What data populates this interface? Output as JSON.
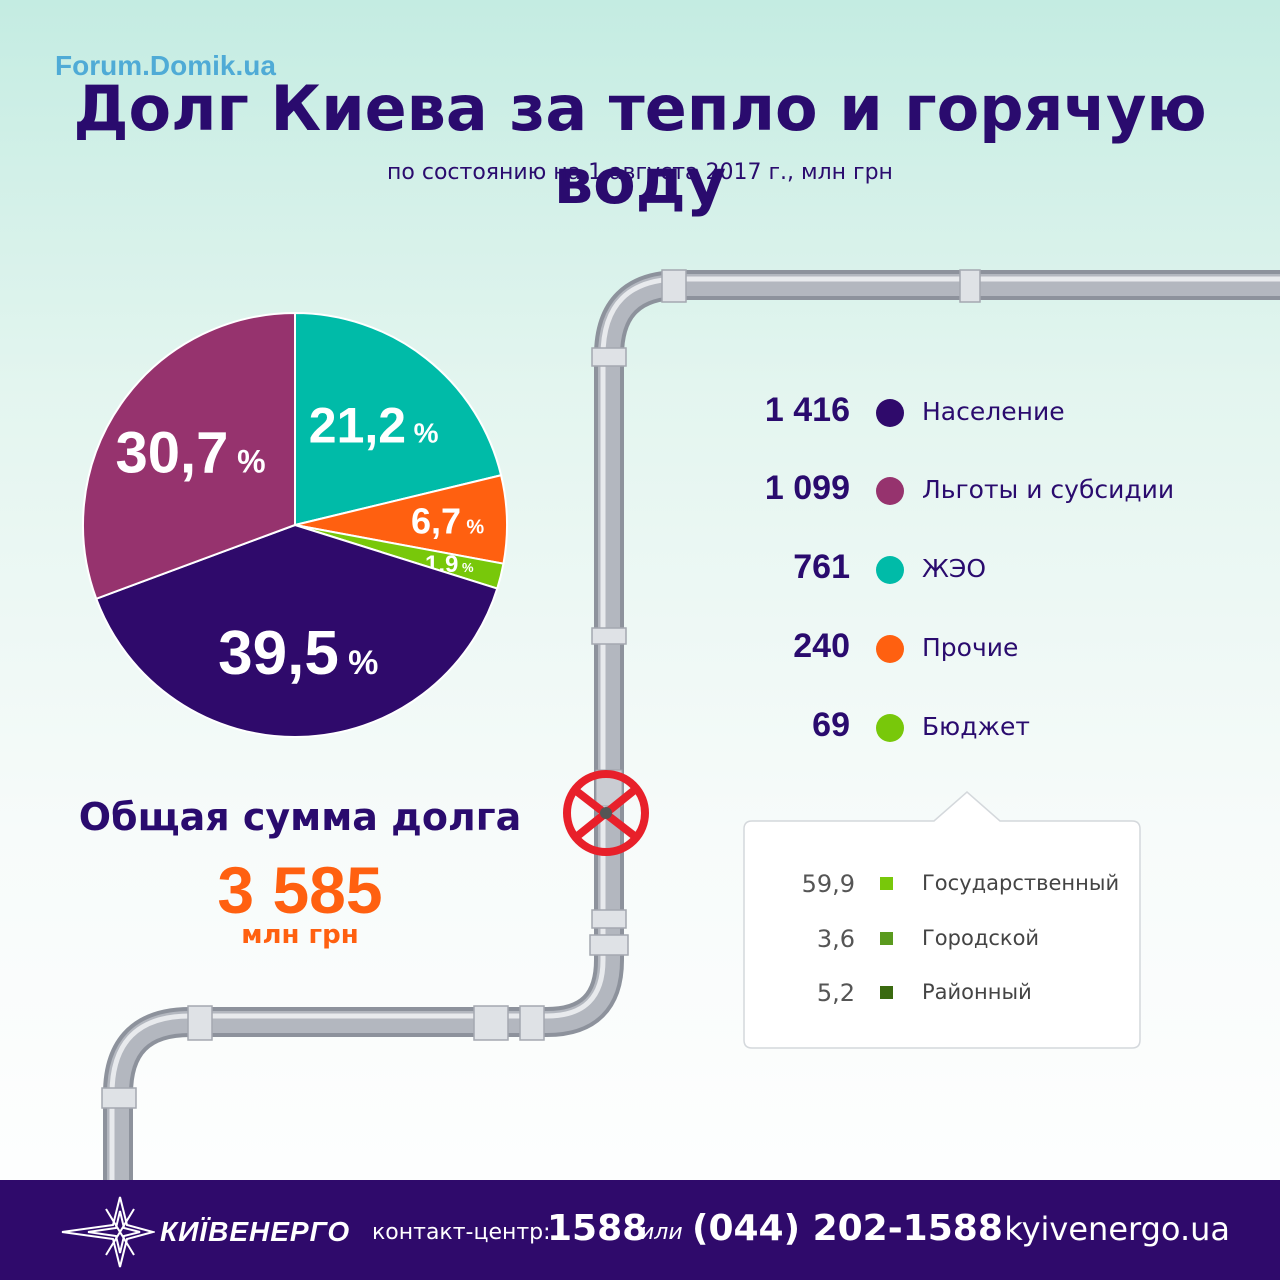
{
  "watermark": "Forum.Domik.ua",
  "title": "Долг Киева за тепло и горячую воду",
  "subtitle": "по состоянию на 1 августа 2017 г., млн грн",
  "chart_data": {
    "type": "pie",
    "unit": "млн грн",
    "slices": [
      {
        "label": "Население",
        "value": 1416,
        "value_label": "1 416",
        "percent_label": "39,5",
        "color": "#2f0a6b"
      },
      {
        "label": "Льготы и субсидии",
        "value": 1099,
        "value_label": "1 099",
        "percent_label": "30,7",
        "color": "#96336e"
      },
      {
        "label": "ЖЭО",
        "value": 761,
        "value_label": "761",
        "percent_label": "21,2",
        "color": "#00bba8"
      },
      {
        "label": "Прочие",
        "value": 240,
        "value_label": "240",
        "percent_label": "6,7",
        "color": "#ff6010"
      },
      {
        "label": "Бюджет",
        "value": 69,
        "value_label": "69",
        "percent_label": "1,9",
        "color": "#78c80a"
      }
    ],
    "percent_sign": "%",
    "budget_breakdown": [
      {
        "value": "59,9",
        "label": "Государственный",
        "color": "#78c80a"
      },
      {
        "value": "3,6",
        "label": "Городской",
        "color": "#5a9a1e"
      },
      {
        "value": "5,2",
        "label": "Районный",
        "color": "#3a6a10"
      }
    ]
  },
  "total": {
    "label": "Общая сумма долга",
    "value": "3 585",
    "unit": "млн грн"
  },
  "footer": {
    "brand": "КИЇВЕНЕРГО",
    "contact_label": "контакт-центр:",
    "contact_short": "1588",
    "contact_or": "или",
    "contact_full": "(044) 202-1588",
    "website": "kyivenergo.ua"
  },
  "colors": {
    "primary": "#2f0a6b",
    "accent": "#ff6010",
    "pipe": "#a9adb6",
    "valve": "#e8202a"
  }
}
